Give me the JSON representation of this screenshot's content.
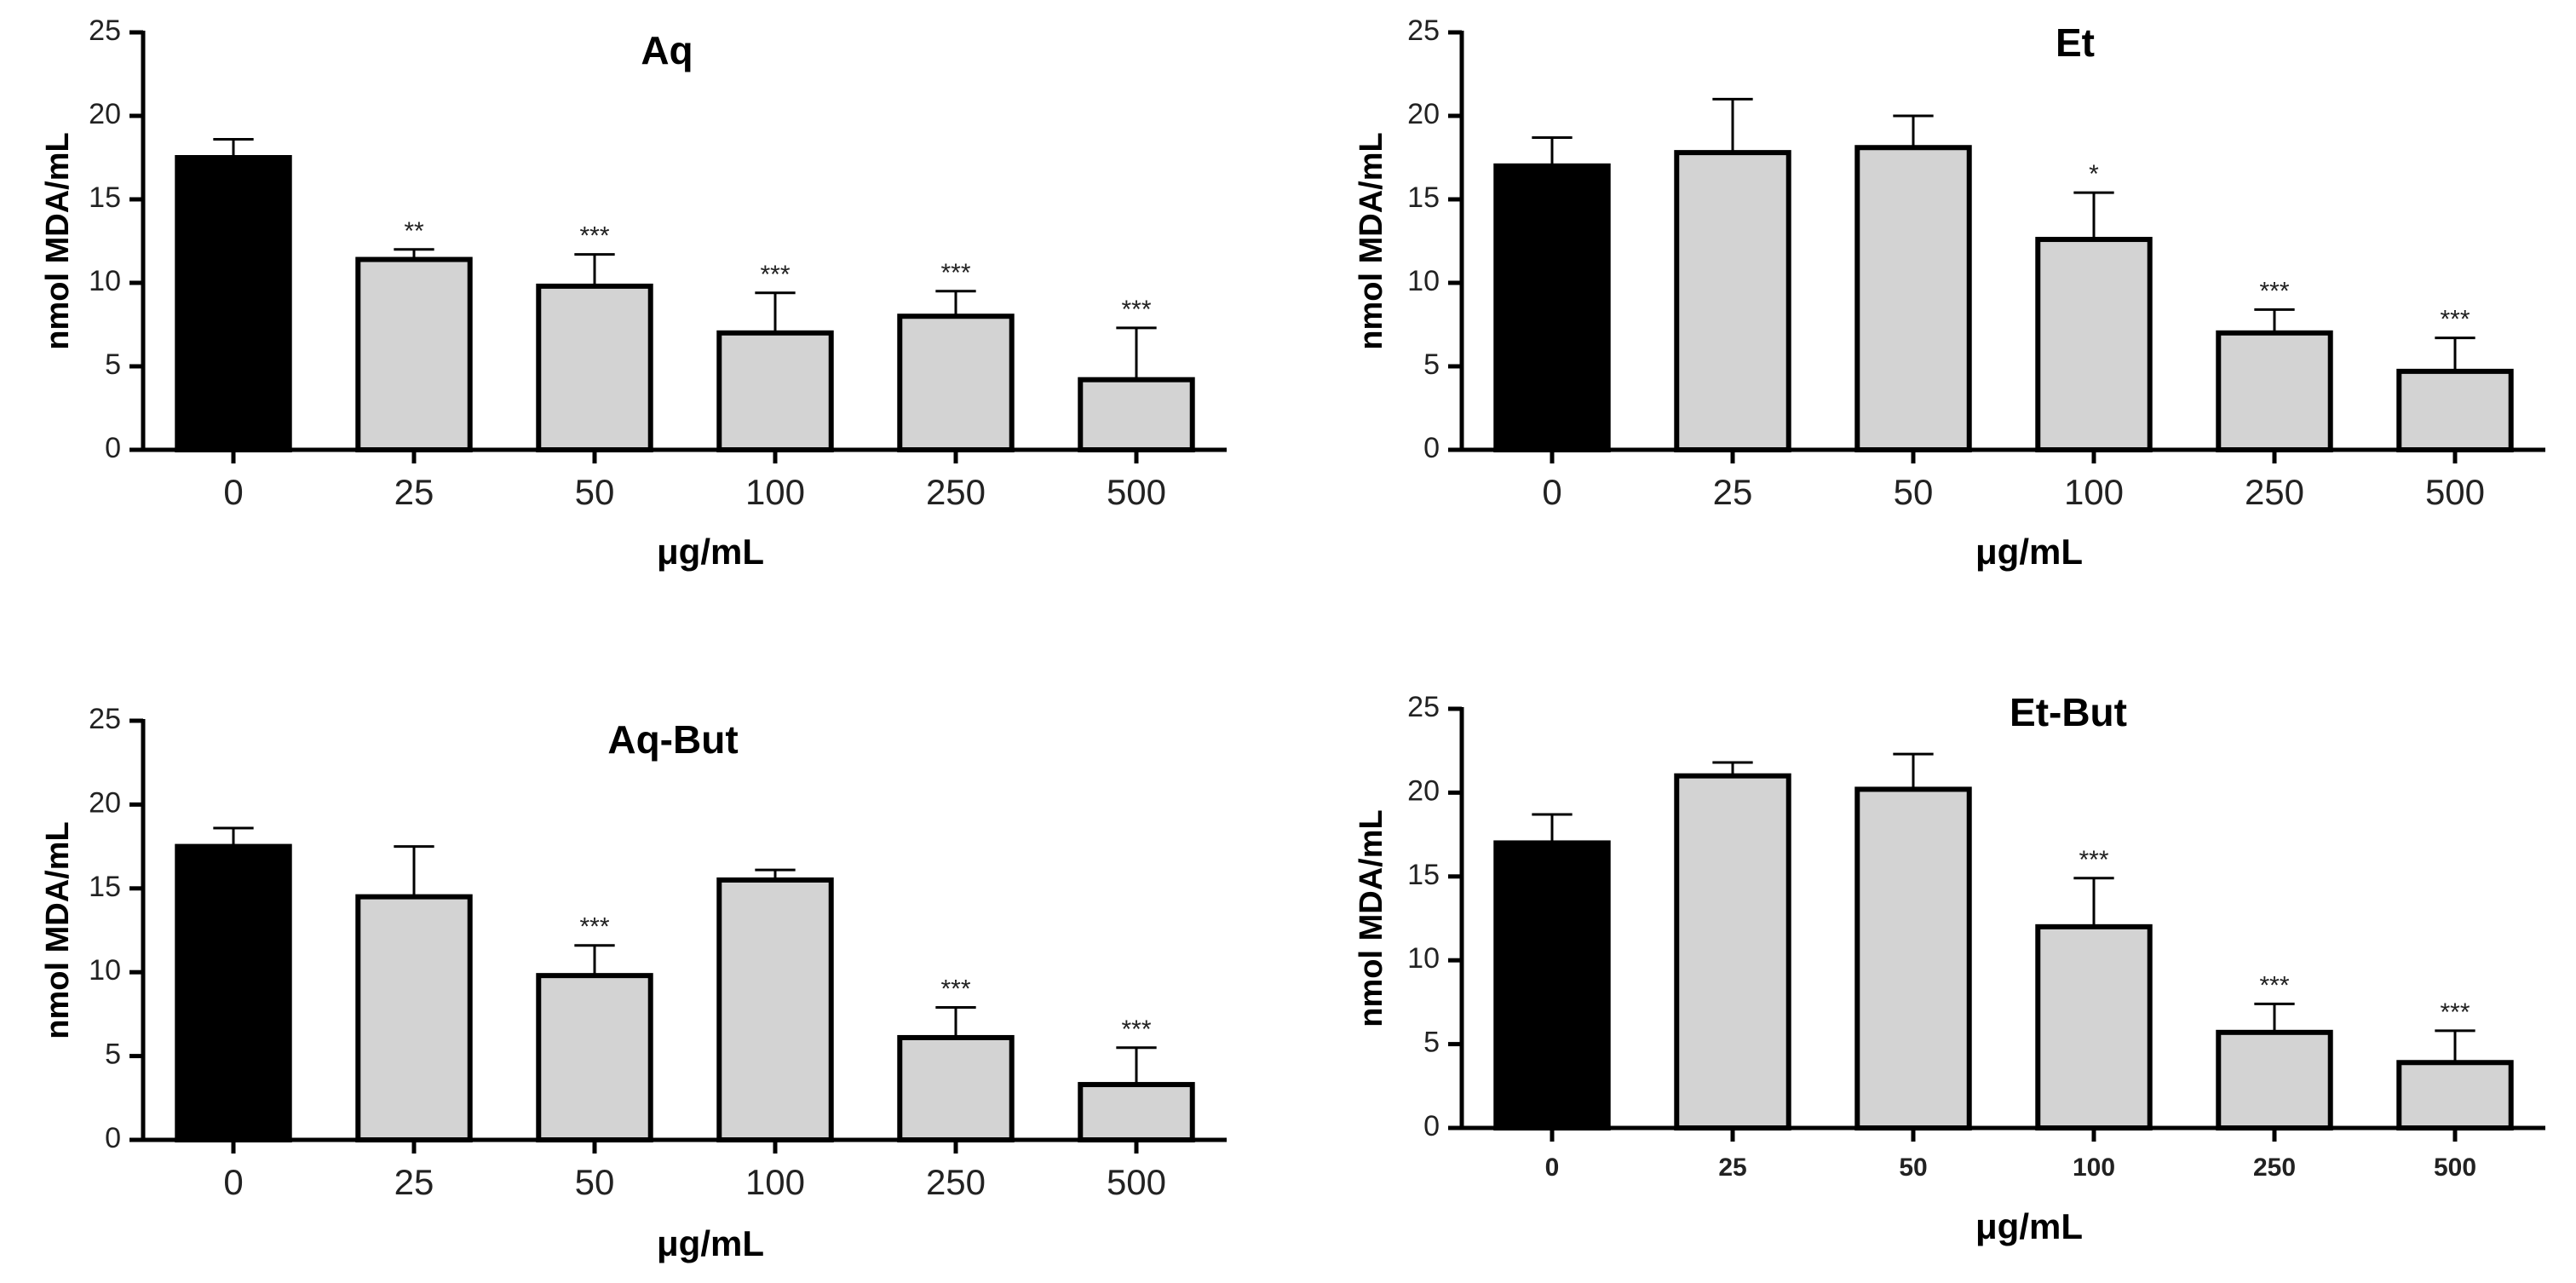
{
  "chart_data": [
    {
      "type": "bar",
      "title": "Aq",
      "xlabel": "μg/mL",
      "ylabel": "nmol MDA/mL",
      "ylim": [
        0,
        25
      ],
      "yticks": [
        "0",
        "5",
        "10",
        "15",
        "20",
        "25"
      ],
      "categories": [
        "0",
        "25",
        "50",
        "100",
        "250",
        "500"
      ],
      "values": [
        17.5,
        11.4,
        9.8,
        7.0,
        8.0,
        4.2
      ],
      "errors": [
        1.1,
        0.6,
        1.9,
        2.4,
        1.5,
        3.1
      ],
      "significance": [
        "",
        "**",
        "***",
        "***",
        "***",
        "***"
      ],
      "bar_colors": [
        "#000000",
        "#d3d3d3",
        "#d3d3d3",
        "#d3d3d3",
        "#d3d3d3",
        "#d3d3d3"
      ]
    },
    {
      "type": "bar",
      "title": "Et",
      "xlabel": "μg/mL",
      "ylabel": "nmol MDA/mL",
      "ylim": [
        0,
        25
      ],
      "yticks": [
        "0",
        "5",
        "10",
        "15",
        "20",
        "25"
      ],
      "categories": [
        "0",
        "25",
        "50",
        "100",
        "250",
        "500"
      ],
      "values": [
        17.0,
        17.8,
        18.1,
        12.6,
        7.0,
        4.7
      ],
      "errors": [
        1.7,
        3.2,
        1.9,
        2.8,
        1.4,
        2.0
      ],
      "significance": [
        "",
        "",
        "",
        "*",
        "***",
        "***"
      ],
      "bar_colors": [
        "#000000",
        "#d3d3d3",
        "#d3d3d3",
        "#d3d3d3",
        "#d3d3d3",
        "#d3d3d3"
      ]
    },
    {
      "type": "bar",
      "title": "Aq-But",
      "xlabel": "μg/mL",
      "ylabel": "nmol MDA/mL",
      "ylim": [
        0,
        25
      ],
      "yticks": [
        "0",
        "5",
        "10",
        "15",
        "20",
        "25"
      ],
      "categories": [
        "0",
        "25",
        "50",
        "100",
        "250",
        "500"
      ],
      "values": [
        17.5,
        14.5,
        9.8,
        15.5,
        6.1,
        3.3
      ],
      "errors": [
        1.1,
        3.0,
        1.8,
        0.6,
        1.8,
        2.2
      ],
      "significance": [
        "",
        "",
        "***",
        "",
        "***",
        "***"
      ],
      "bar_colors": [
        "#000000",
        "#d3d3d3",
        "#d3d3d3",
        "#d3d3d3",
        "#d3d3d3",
        "#d3d3d3"
      ]
    },
    {
      "type": "bar",
      "title": "Et-But",
      "xlabel": "μg/mL",
      "ylabel": "nmol MDA/mL",
      "ylim": [
        0,
        25
      ],
      "yticks": [
        "0",
        "5",
        "10",
        "15",
        "20",
        "25"
      ],
      "categories": [
        "0",
        "25",
        "50",
        "100",
        "250",
        "500"
      ],
      "values": [
        17.0,
        21.0,
        20.2,
        12.0,
        5.7,
        3.9
      ],
      "errors": [
        1.7,
        0.8,
        2.1,
        2.9,
        1.7,
        1.9
      ],
      "significance": [
        "",
        "",
        "",
        "***",
        "***",
        "***"
      ],
      "bar_colors": [
        "#000000",
        "#d3d3d3",
        "#d3d3d3",
        "#d3d3d3",
        "#d3d3d3",
        "#d3d3d3"
      ]
    }
  ]
}
